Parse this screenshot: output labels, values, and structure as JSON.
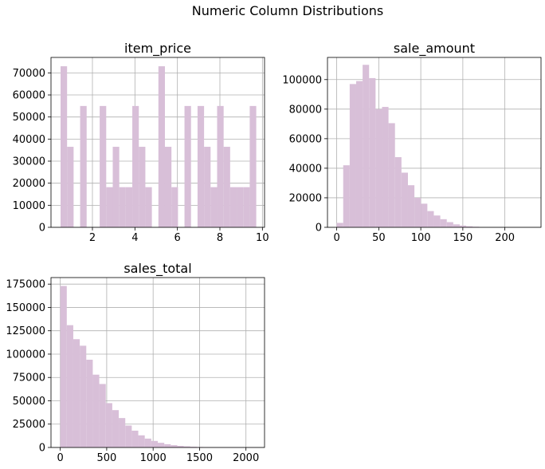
{
  "title": "Numeric Column Distributions",
  "colors": {
    "bar": "#d8bfd8",
    "grid": "#b0b0b0"
  },
  "chart_data": [
    {
      "type": "bar",
      "title": "item_price",
      "grid": true,
      "xlim": [
        0.05,
        10.1
      ],
      "ylim": [
        0,
        77000
      ],
      "xticks": [
        2,
        4,
        6,
        8,
        10
      ],
      "yticks": [
        0,
        10000,
        20000,
        30000,
        40000,
        50000,
        60000,
        70000
      ],
      "bin_start": 0.5,
      "bin_width": 0.307,
      "values": [
        73000,
        36500,
        0,
        55000,
        0,
        0,
        55000,
        18200,
        36500,
        18200,
        18200,
        55000,
        36500,
        18200,
        0,
        73000,
        36500,
        18200,
        0,
        55000,
        0,
        55000,
        36500,
        18200,
        55000,
        36500,
        18200,
        18200,
        18200,
        55000
      ]
    },
    {
      "type": "bar",
      "title": "sale_amount",
      "grid": true,
      "xlim": [
        -11,
        243
      ],
      "ylim": [
        0,
        115000
      ],
      "xticks": [
        0,
        50,
        100,
        150,
        200
      ],
      "yticks": [
        0,
        20000,
        40000,
        60000,
        80000,
        100000
      ],
      "bin_start": 0,
      "bin_width": 7.7,
      "values": [
        3000,
        42000,
        97000,
        99000,
        110000,
        101000,
        80000,
        81500,
        70500,
        47500,
        37000,
        28500,
        20000,
        16000,
        11000,
        8000,
        5500,
        3500,
        2000,
        1200,
        700,
        400,
        200,
        100,
        50,
        0,
        0,
        0,
        0,
        20
      ]
    },
    {
      "type": "bar",
      "title": "sales_total",
      "grid": true,
      "xlim": [
        -100,
        2200
      ],
      "ylim": [
        0,
        182000
      ],
      "xticks": [
        0,
        500,
        1000,
        1500,
        2000
      ],
      "yticks": [
        0,
        25000,
        50000,
        75000,
        100000,
        125000,
        150000,
        175000
      ],
      "bin_start": 0,
      "bin_width": 70,
      "values": [
        173000,
        131000,
        116000,
        109000,
        94000,
        78000,
        68000,
        47500,
        40000,
        31500,
        23500,
        18000,
        13000,
        9500,
        7000,
        5000,
        3500,
        2500,
        1700,
        1200,
        800,
        500,
        350,
        250,
        150,
        100,
        70,
        50,
        30,
        20
      ]
    }
  ]
}
